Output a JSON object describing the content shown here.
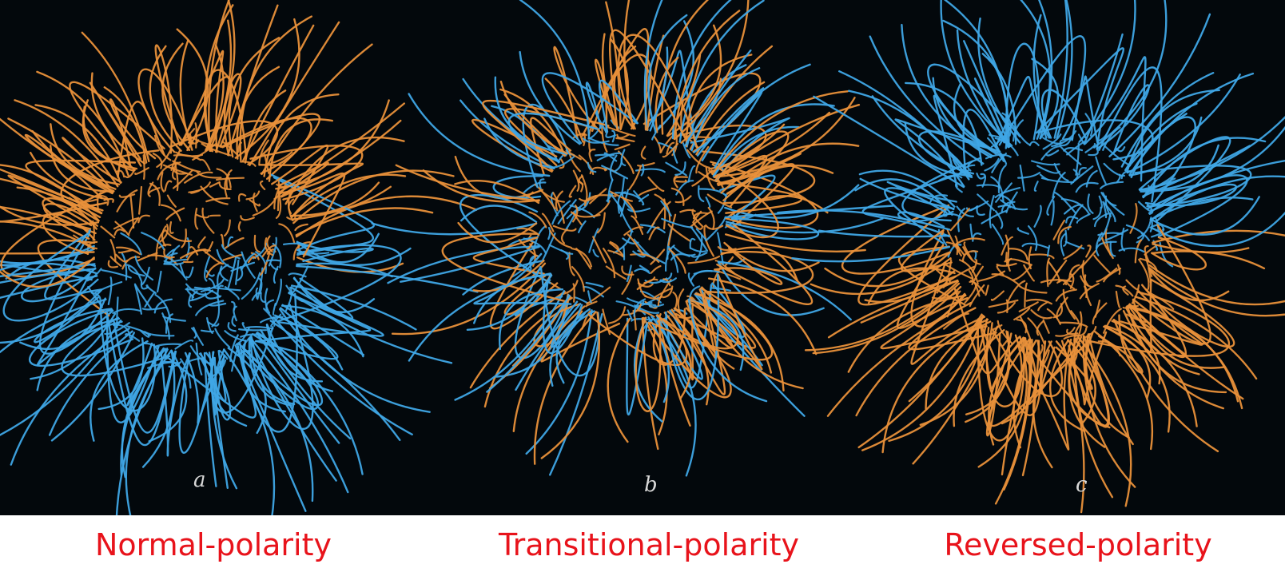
{
  "colors": {
    "background": "#03080c",
    "orange_field_lines": "#e8903a",
    "blue_field_lines": "#3fa6e6",
    "caption_text": "#e8131b",
    "letter_text": "#d9d9d9"
  },
  "panels": [
    {
      "letter": "a",
      "caption": "Normal-polarity",
      "north_color": "orange",
      "south_color": "blue"
    },
    {
      "letter": "b",
      "caption": "Transitional-polarity",
      "north_color": "mixed",
      "south_color": "mixed"
    },
    {
      "letter": "c",
      "caption": "Reversed-polarity",
      "north_color": "blue",
      "south_color": "orange"
    }
  ]
}
